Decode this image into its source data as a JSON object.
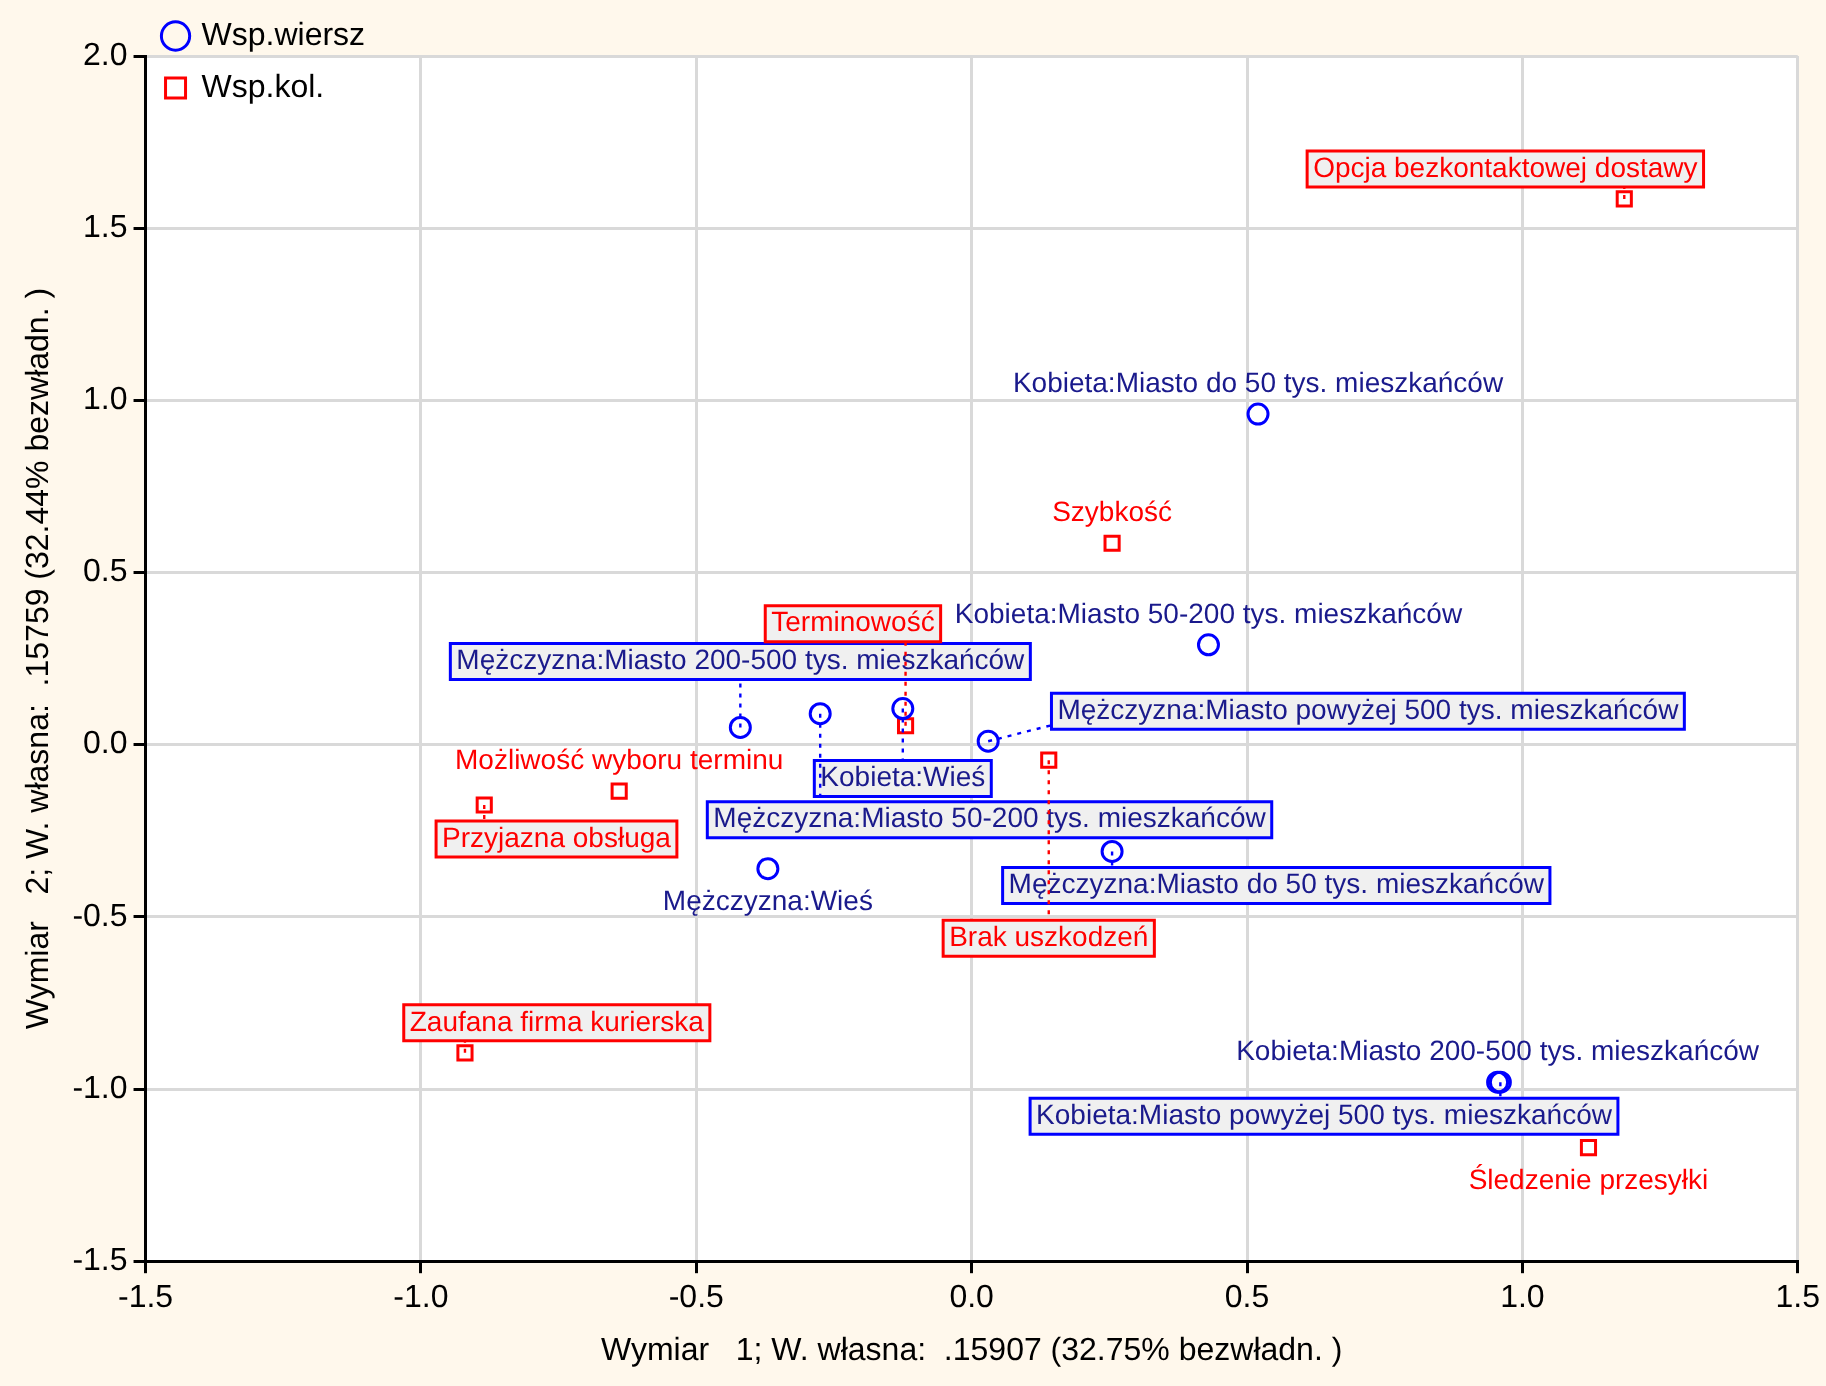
{
  "chart_data": {
    "type": "scatter",
    "xlabel": "Wymiar   1; W. własna:  .15907 (32.75% bezwładn. )",
    "ylabel": "Wymiar   2; W. własna:  .15759 (32.44% bezwładn. )",
    "xlim": [
      -1.5,
      1.5
    ],
    "ylim": [
      -1.5,
      2.0
    ],
    "xticks": [
      -1.5,
      {
        "value": -1,
        "label": "-1.0"
      },
      -0.5,
      {
        "value": 0,
        "label": "0.0"
      },
      0.5,
      {
        "value": 1,
        "label": "1.0"
      },
      1.5
    ],
    "yticks": [
      -1.5,
      {
        "value": -1,
        "label": "-1.0"
      },
      -0.5,
      {
        "value": 0,
        "label": "0.0"
      },
      0.5,
      {
        "value": 1,
        "label": "1.0"
      },
      1.5,
      {
        "value": 2,
        "label": "2.0"
      }
    ],
    "grid": true,
    "legend": "top left",
    "series": [
      {
        "name": "Wsp.wiersz",
        "color": "#0000ff",
        "marker": "circle",
        "x": [
          0.52,
          0.43,
          -0.42,
          -0.125,
          -0.275,
          0.03,
          -0.37,
          0.255,
          0.955,
          0.96
        ],
        "values": [
          0.96,
          0.29,
          0.05,
          0.105,
          0.09,
          0.01,
          -0.36,
          -0.31,
          -0.98,
          -0.98
        ]
      },
      {
        "name": "Wsp.kol.",
        "color": "#ff0000",
        "marker": "square",
        "x": [
          1.185,
          0.255,
          -0.12,
          0.14,
          -0.885,
          -0.64,
          -0.92,
          1.12
        ],
        "values": [
          1.585,
          0.585,
          0.055,
          -0.045,
          -0.175,
          -0.135,
          -0.895,
          -1.17
        ]
      }
    ],
    "annotations": [
      {
        "text": "Kobieta:Miasto do 50 tys. mieszkańców",
        "x": 0.52,
        "y": 0.96
      },
      {
        "text": "Kobieta:Miasto 50-200 tys. mieszkańców",
        "x": 0.43,
        "y": 0.29
      },
      {
        "text": "Mężczyzna:Miasto 200-500 tys. mieszkańców",
        "x": -0.42,
        "y": 0.05
      },
      {
        "text": "Kobieta:Wieś",
        "x": -0.125,
        "y": 0.105
      },
      {
        "text": "Mężczyzna:Miasto 50-200 tys. mieszkańców",
        "x": -0.275,
        "y": 0.09
      },
      {
        "text": "Mężczyzna:Miasto powyżej 500 tys. mieszkańców",
        "x": 0.03,
        "y": 0.01
      },
      {
        "text": "Mężczyzna:Wieś",
        "x": -0.37,
        "y": -0.36
      },
      {
        "text": "Mężczyzna:Miasto do 50 tys. mieszkańców",
        "x": 0.255,
        "y": -0.31
      },
      {
        "text": "Kobieta:Miasto 200-500 tys. mieszkańców",
        "x": 0.955,
        "y": -0.98
      },
      {
        "text": "Kobieta:Miasto powyżej 500 tys. mieszkańców",
        "x": 0.96,
        "y": -0.98
      },
      {
        "text": "Opcja bezkontaktowej dostawy",
        "x": 1.185,
        "y": 1.585
      },
      {
        "text": "Szybkość",
        "x": 0.255,
        "y": 0.585
      },
      {
        "text": "Terminowość",
        "x": -0.12,
        "y": 0.055
      },
      {
        "text": "Brak uszkodzeń",
        "x": 0.14,
        "y": -0.045
      },
      {
        "text": "Przyjazna obsługa",
        "x": -0.885,
        "y": -0.175
      },
      {
        "text": "Możliwość wyboru terminu",
        "x": -0.64,
        "y": -0.135
      },
      {
        "text": "Zaufana firma kurierska",
        "x": -0.92,
        "y": -0.895
      },
      {
        "text": "Śledzenie przesyłki",
        "x": 1.12,
        "y": -1.17
      }
    ]
  }
}
